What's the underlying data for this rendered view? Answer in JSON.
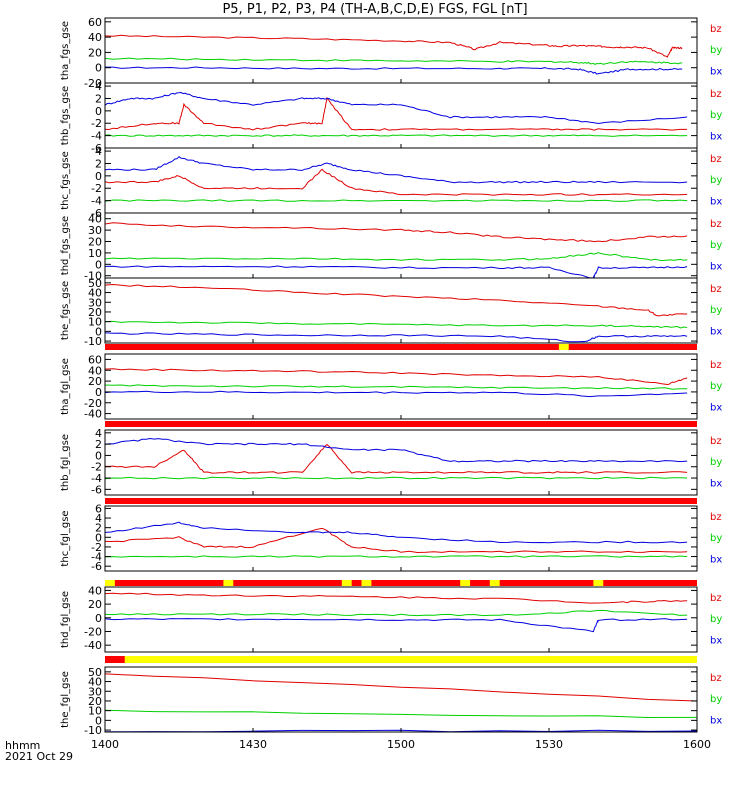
{
  "title": "P5, P1, P2, P3, P4 (TH-A,B,C,D,E) FGS, FGL [nT]",
  "x_axis": {
    "label_line1": "hhmm",
    "label_line2": "2021 Oct 29",
    "ticks": [
      "1400",
      "1430",
      "1500",
      "1530",
      "1600"
    ],
    "tick_minutes": [
      0,
      30,
      60,
      90,
      120
    ],
    "range_minutes": [
      0,
      120
    ]
  },
  "colors": {
    "bz": "#e00000",
    "by": "#00d000",
    "bx": "#0000e0",
    "mode_red": "#ff0000",
    "mode_yellow": "#ffff00"
  },
  "legend": [
    "bz",
    "by",
    "bx"
  ],
  "chart_data": [
    {
      "type": "line",
      "panel": "tha_fgs_gse",
      "ylabel": "tha_fgs_gse",
      "ylim": [
        -20,
        65
      ],
      "yticks": [
        60,
        40,
        20,
        0,
        -20
      ],
      "series": [
        {
          "name": "bz",
          "x": [
            0,
            20,
            40,
            60,
            70,
            75,
            80,
            88,
            92,
            96,
            100,
            103,
            106,
            110,
            114,
            115,
            117
          ],
          "y": [
            42,
            40,
            38,
            35,
            33,
            24,
            33,
            30,
            28,
            29,
            28,
            27,
            27,
            26,
            14,
            26,
            26
          ]
        },
        {
          "name": "by",
          "x": [
            0,
            20,
            40,
            60,
            80,
            90,
            96,
            100,
            106,
            112,
            117
          ],
          "y": [
            12,
            11,
            10,
            9,
            8,
            8,
            7,
            5,
            8,
            7,
            6
          ]
        },
        {
          "name": "bx",
          "x": [
            0,
            20,
            40,
            60,
            80,
            90,
            96,
            100,
            106,
            112,
            117
          ],
          "y": [
            0,
            0,
            -1,
            -1,
            -1,
            -1,
            -2,
            -8,
            -2,
            -2,
            -2
          ]
        }
      ]
    },
    {
      "type": "line",
      "panel": "thb_fgs_gse",
      "ylabel": "thb_fgs_gse",
      "ylim": [
        -6,
        4.5
      ],
      "yticks": [
        4,
        2,
        0,
        -2,
        -4,
        -6
      ],
      "series": [
        {
          "name": "bz",
          "x": [
            0,
            10,
            15,
            16,
            20,
            30,
            40,
            44,
            45,
            50,
            60,
            75,
            90,
            100,
            118
          ],
          "y": [
            -3,
            -2,
            -2,
            1,
            -2,
            -3,
            -2,
            -2,
            2,
            -3,
            -3,
            -3,
            -3,
            -3,
            -3
          ]
        },
        {
          "name": "by",
          "x": [
            0,
            10,
            20,
            30,
            40,
            50,
            60,
            75,
            90,
            100,
            118
          ],
          "y": [
            -4,
            -4,
            -4,
            -4,
            -4,
            -4,
            -4,
            -4,
            -4,
            -4,
            -4
          ]
        },
        {
          "name": "bx",
          "x": [
            0,
            5,
            10,
            15,
            20,
            30,
            40,
            45,
            50,
            60,
            70,
            80,
            90,
            100,
            118
          ],
          "y": [
            1,
            2,
            2,
            3,
            2,
            1,
            2,
            2,
            1,
            1,
            -1,
            -1,
            -1,
            -2,
            -1
          ]
        }
      ]
    },
    {
      "type": "line",
      "panel": "thc_fgs_gse",
      "ylabel": "thc_fgs_gse",
      "ylim": [
        -6,
        4.5
      ],
      "yticks": [
        4,
        2,
        0,
        -2,
        -4,
        -6
      ],
      "series": [
        {
          "name": "bz",
          "x": [
            0,
            10,
            15,
            20,
            30,
            40,
            44,
            50,
            60,
            75,
            90,
            100,
            118
          ],
          "y": [
            -1,
            -1,
            0,
            -2,
            -2,
            -2,
            1,
            -2,
            -3,
            -3,
            -3,
            -3,
            -3
          ]
        },
        {
          "name": "by",
          "x": [
            0,
            20,
            40,
            60,
            80,
            100,
            118
          ],
          "y": [
            -4,
            -4,
            -4,
            -4,
            -4,
            -4,
            -4
          ]
        },
        {
          "name": "bx",
          "x": [
            0,
            10,
            15,
            20,
            30,
            40,
            45,
            50,
            60,
            70,
            80,
            90,
            100,
            118
          ],
          "y": [
            1,
            1,
            3,
            2,
            1,
            1,
            2,
            1,
            0,
            -1,
            -1,
            -1,
            -1,
            -1
          ]
        }
      ]
    },
    {
      "type": "line",
      "panel": "thd_fgs_gse",
      "ylabel": "thd_fgs_gse",
      "ylim": [
        -12,
        45
      ],
      "yticks": [
        40,
        30,
        20,
        10,
        0,
        -10
      ],
      "series": [
        {
          "name": "bz",
          "x": [
            0,
            20,
            40,
            60,
            70,
            80,
            90,
            100,
            110,
            118
          ],
          "y": [
            36,
            33,
            32,
            30,
            28,
            24,
            22,
            20,
            24,
            25
          ]
        },
        {
          "name": "by",
          "x": [
            0,
            20,
            40,
            60,
            80,
            90,
            100,
            110,
            118
          ],
          "y": [
            5,
            5,
            5,
            4,
            4,
            5,
            10,
            4,
            4
          ]
        },
        {
          "name": "bx",
          "x": [
            0,
            20,
            40,
            60,
            80,
            90,
            99,
            100,
            110,
            118
          ],
          "y": [
            -2,
            -2,
            -2,
            -3,
            -3,
            -3,
            -12,
            -3,
            -3,
            -2
          ]
        }
      ]
    },
    {
      "type": "line",
      "panel": "the_fgs_gse",
      "ylabel": "the_fgs_gse",
      "ylim": [
        -12,
        55
      ],
      "yticks": [
        50,
        40,
        30,
        20,
        10,
        0,
        -10
      ],
      "series": [
        {
          "name": "bz",
          "x": [
            0,
            20,
            40,
            60,
            80,
            100,
            110,
            112,
            118
          ],
          "y": [
            48,
            45,
            40,
            36,
            32,
            26,
            22,
            16,
            18
          ]
        },
        {
          "name": "by",
          "x": [
            0,
            20,
            40,
            60,
            80,
            100,
            110,
            118
          ],
          "y": [
            10,
            9,
            8,
            7,
            6,
            6,
            5,
            4
          ]
        },
        {
          "name": "bx",
          "x": [
            0,
            20,
            40,
            60,
            80,
            97,
            100,
            110,
            118
          ],
          "y": [
            -2,
            -3,
            -4,
            -4,
            -5,
            -11,
            -5,
            -5,
            -5
          ]
        }
      ]
    },
    {
      "type": "line",
      "panel": "tha_fgl_gse",
      "ylabel": "tha_fgl_gse",
      "ylim": [
        -50,
        70
      ],
      "yticks": [
        60,
        40,
        20,
        0,
        -20,
        -40
      ],
      "series": [
        {
          "name": "bz",
          "x": [
            0,
            20,
            40,
            60,
            80,
            100,
            114,
            118
          ],
          "y": [
            42,
            40,
            38,
            35,
            30,
            28,
            14,
            26
          ]
        },
        {
          "name": "by",
          "x": [
            0,
            20,
            40,
            60,
            80,
            100,
            118
          ],
          "y": [
            12,
            11,
            10,
            9,
            8,
            7,
            6
          ]
        },
        {
          "name": "bx",
          "x": [
            0,
            20,
            40,
            60,
            80,
            100,
            118
          ],
          "y": [
            0,
            0,
            -1,
            -1,
            -1,
            -8,
            -2
          ]
        }
      ]
    },
    {
      "type": "line",
      "panel": "thb_fgl_gse",
      "ylabel": "thb_fgl_gse",
      "ylim": [
        -7,
        4.5
      ],
      "yticks": [
        4,
        2,
        0,
        -2,
        -4,
        -6
      ],
      "series": [
        {
          "name": "bz",
          "x": [
            0,
            10,
            16,
            20,
            30,
            40,
            45,
            50,
            60,
            75,
            90,
            100,
            118
          ],
          "y": [
            -2,
            -2,
            1,
            -3,
            -3,
            -3,
            2,
            -3,
            -3,
            -3,
            -3,
            -3,
            -3
          ]
        },
        {
          "name": "by",
          "x": [
            0,
            20,
            40,
            60,
            80,
            100,
            118
          ],
          "y": [
            -4,
            -4,
            -4,
            -4,
            -4,
            -4,
            -4
          ]
        },
        {
          "name": "bx",
          "x": [
            0,
            10,
            20,
            30,
            40,
            50,
            60,
            70,
            80,
            90,
            100,
            118
          ],
          "y": [
            2,
            3,
            2,
            2,
            2,
            1,
            1,
            -1,
            -1,
            -1,
            -1,
            -1
          ]
        }
      ]
    },
    {
      "type": "line",
      "panel": "thc_fgl_gse",
      "ylabel": "thc_fgl_gse",
      "ylim": [
        -7,
        6.5
      ],
      "yticks": [
        6,
        4,
        2,
        0,
        -2,
        -4,
        -6
      ],
      "series": [
        {
          "name": "bz",
          "x": [
            0,
            15,
            20,
            30,
            44,
            50,
            60,
            80,
            100,
            118
          ],
          "y": [
            -1,
            0,
            -2,
            -2,
            2,
            -2,
            -3,
            -3,
            -3,
            -3
          ]
        },
        {
          "name": "by",
          "x": [
            0,
            20,
            40,
            60,
            80,
            100,
            118
          ],
          "y": [
            -4,
            -4,
            -4,
            -4,
            -4,
            -4,
            -4
          ]
        },
        {
          "name": "bx",
          "x": [
            0,
            15,
            20,
            40,
            50,
            60,
            80,
            100,
            118
          ],
          "y": [
            1,
            3,
            2,
            1,
            1,
            0,
            -1,
            -1,
            -1
          ]
        }
      ]
    },
    {
      "type": "line",
      "panel": "thd_fgl_gse",
      "ylabel": "thd_fgl_gse",
      "ylim": [
        -50,
        45
      ],
      "yticks": [
        40,
        20,
        0,
        -20,
        -40
      ],
      "series": [
        {
          "name": "bz",
          "x": [
            0,
            20,
            40,
            60,
            80,
            100,
            110,
            118
          ],
          "y": [
            36,
            33,
            32,
            30,
            28,
            22,
            24,
            25
          ]
        },
        {
          "name": "by",
          "x": [
            0,
            20,
            40,
            60,
            80,
            100,
            118
          ],
          "y": [
            5,
            5,
            5,
            4,
            4,
            10,
            4
          ]
        },
        {
          "name": "bx",
          "x": [
            0,
            20,
            40,
            60,
            80,
            99,
            100,
            118
          ],
          "y": [
            -2,
            -2,
            -2,
            -3,
            -3,
            -20,
            -3,
            -2
          ]
        }
      ]
    },
    {
      "type": "line",
      "panel": "the_fgl_gse",
      "ylabel": "the_fgl_gse",
      "ylim": [
        -12,
        55
      ],
      "yticks": [
        50,
        40,
        30,
        20,
        10,
        0,
        -10
      ],
      "series": [
        {
          "name": "bz",
          "x": [
            0,
            120
          ],
          "y": [
            48,
            20
          ]
        },
        {
          "name": "by",
          "x": [
            0,
            120
          ],
          "y": [
            10,
            3
          ]
        },
        {
          "name": "bx",
          "x": [
            0,
            120
          ],
          "y": [
            -11,
            -11
          ]
        }
      ]
    }
  ]
}
